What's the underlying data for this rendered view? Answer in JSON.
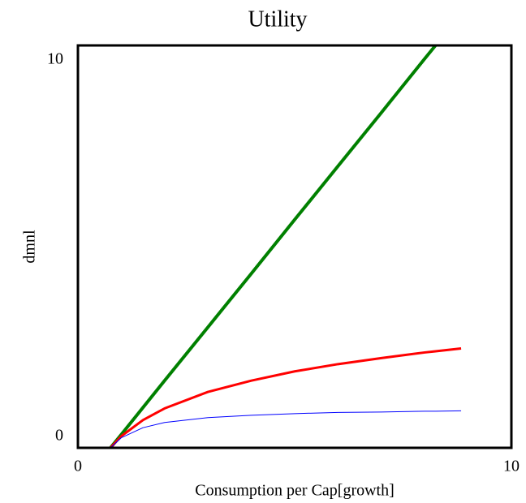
{
  "chart_data": {
    "type": "line",
    "title": "Utility",
    "x_label": "Consumption per Cap[growth]",
    "y_label": "dmnl",
    "x": [
      0.75,
      1,
      1.5,
      2,
      3,
      4,
      5,
      6,
      7,
      8,
      8.25,
      8.84
    ],
    "series": [
      {
        "color": "#008000",
        "width": 4,
        "values": [
          0,
          0.33,
          1,
          1.67,
          3,
          4.33,
          5.67,
          7,
          8.33,
          9.67,
          10,
          null
        ]
      },
      {
        "color": "#ff0000",
        "width": 3,
        "values": [
          0,
          0.29,
          0.69,
          0.98,
          1.39,
          1.67,
          1.9,
          2.08,
          2.23,
          2.37,
          2.4,
          2.47
        ]
      },
      {
        "color": "#0000ff",
        "width": 1,
        "values": [
          0,
          0.25,
          0.5,
          0.63,
          0.75,
          0.81,
          0.85,
          0.88,
          0.89,
          0.91,
          0.91,
          0.92
        ]
      }
    ],
    "xlim": [
      0,
      10
    ],
    "ylim": [
      0,
      10
    ],
    "xticks": [
      0,
      10
    ],
    "yticks": [
      0,
      10
    ],
    "grid": false
  }
}
